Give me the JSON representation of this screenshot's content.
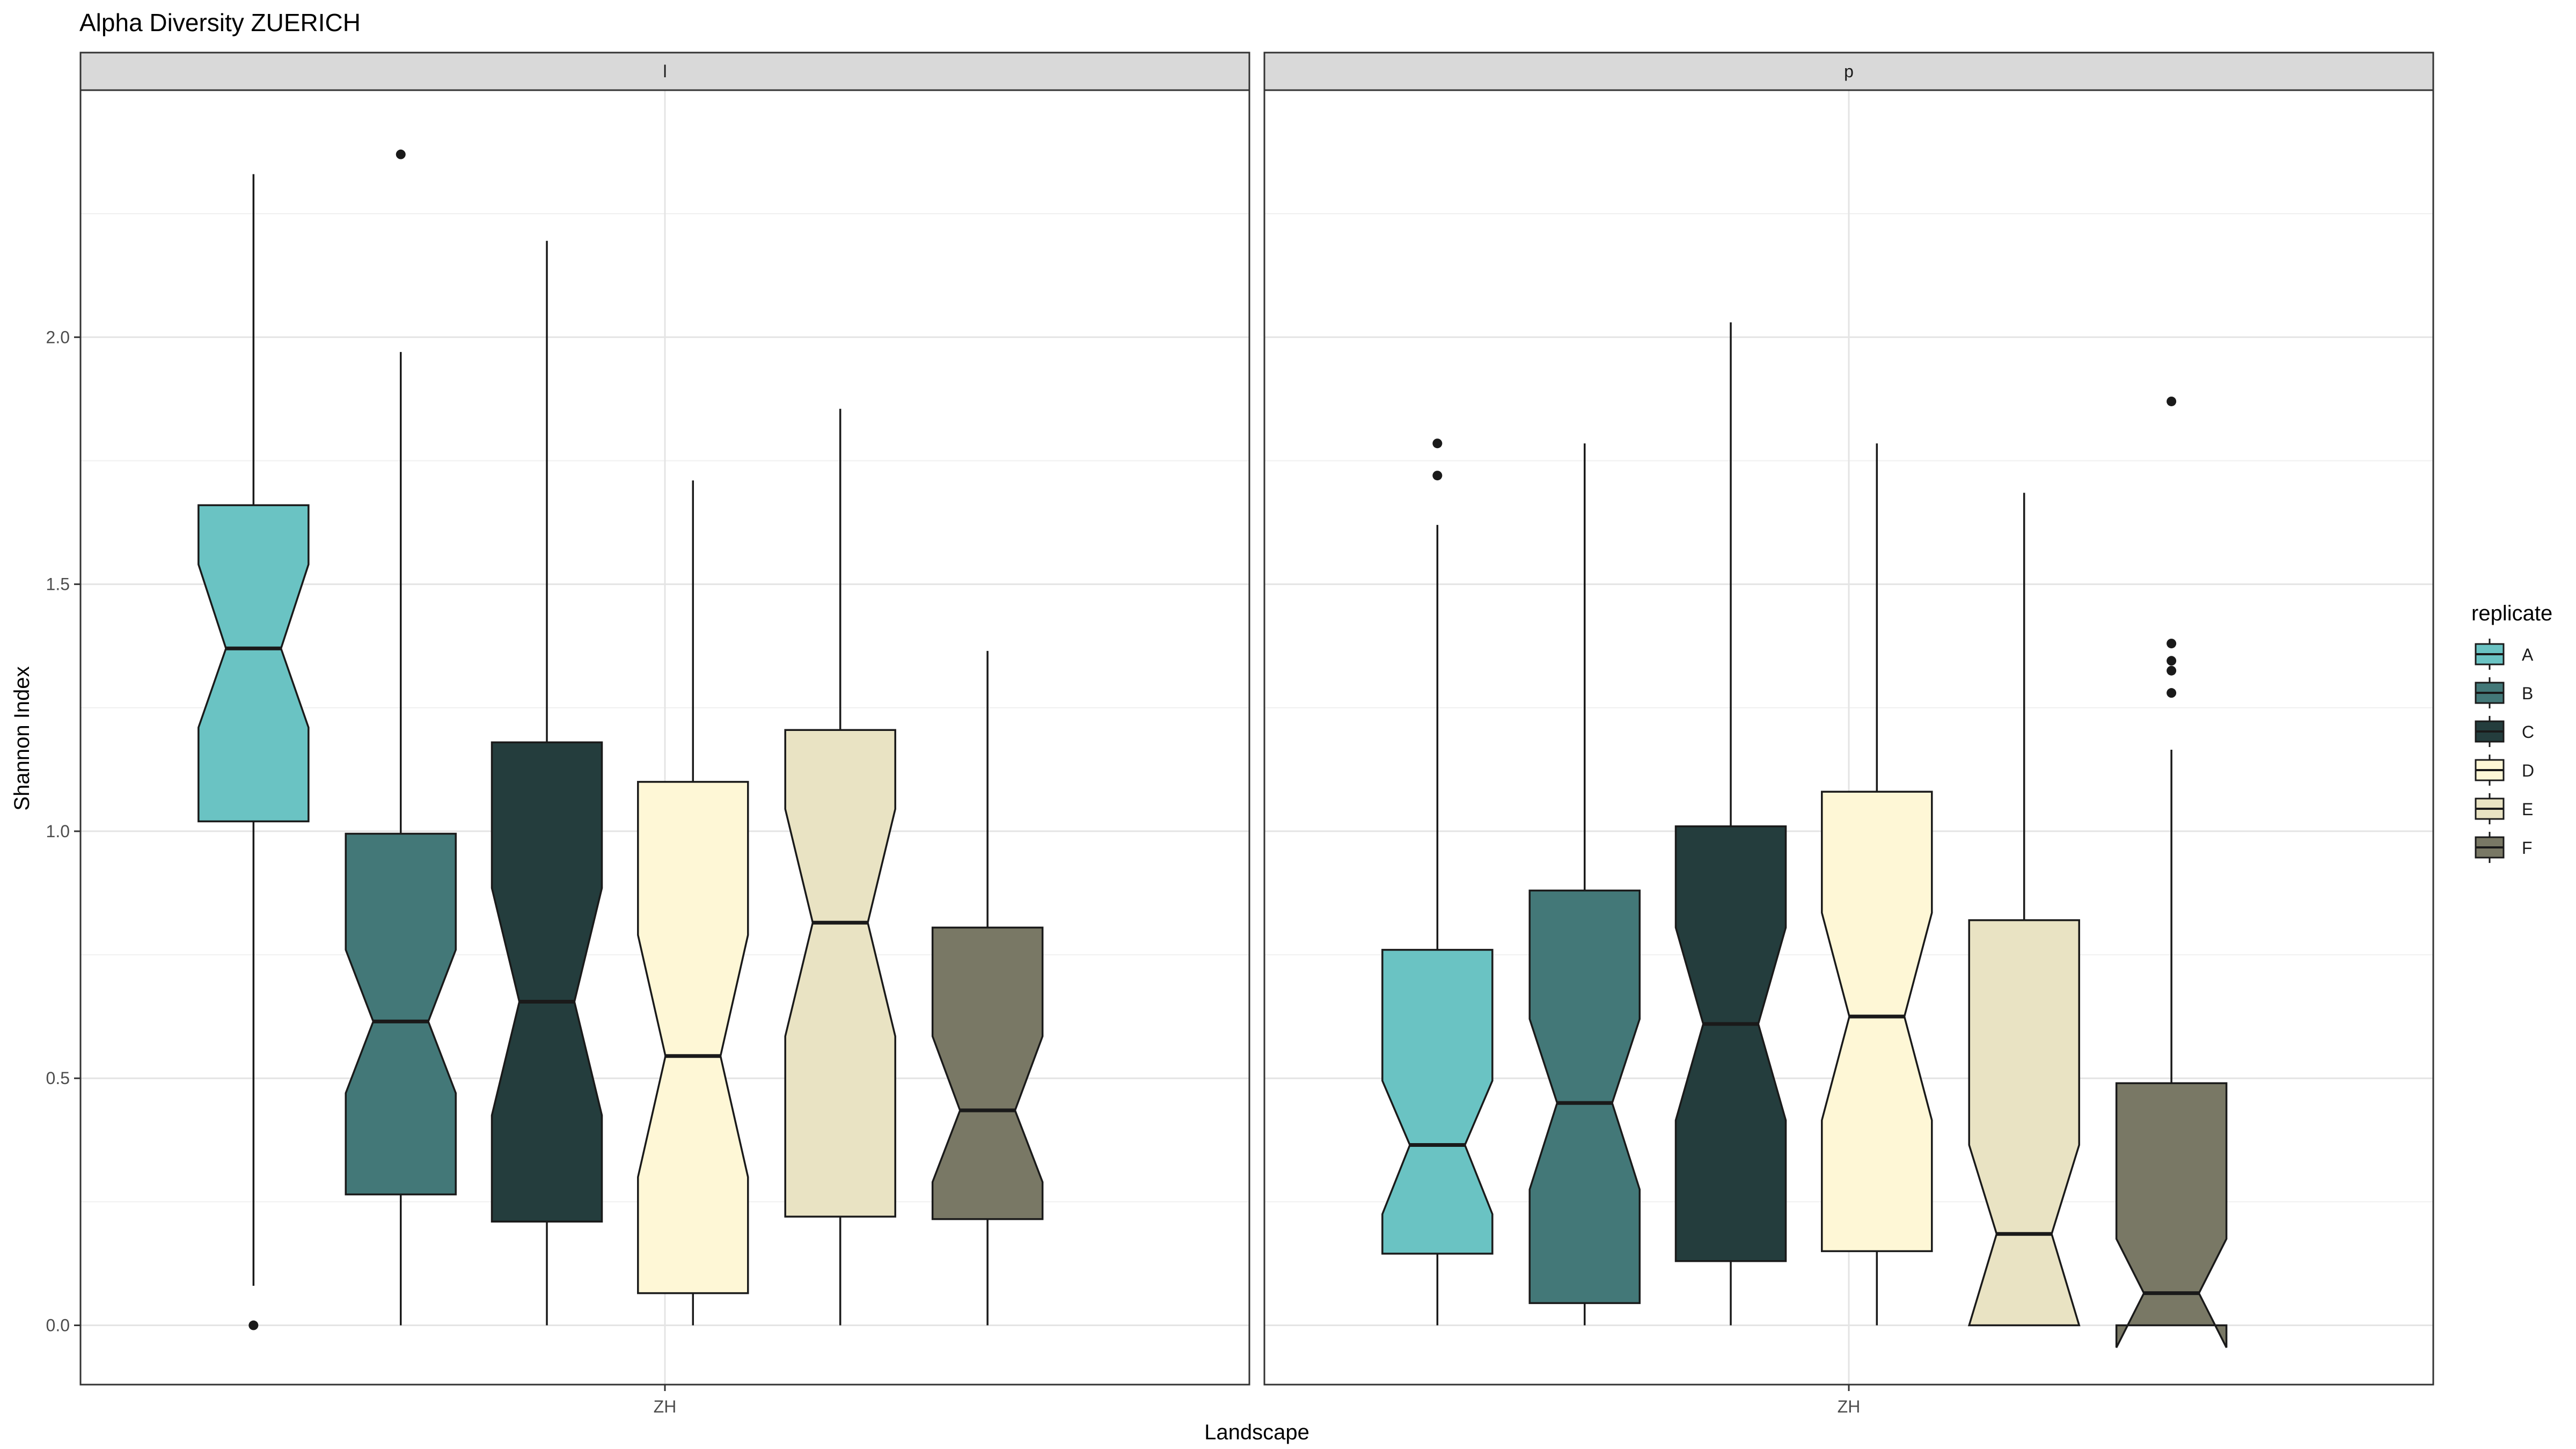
{
  "chart_data": {
    "type": "boxplot",
    "title": "Alpha Diversity ZUERICH",
    "xlabel": "Landscape",
    "ylabel": "Shannon Index",
    "ylim": [
      -0.12,
      2.5
    ],
    "yticks": [
      0.0,
      0.5,
      1.0,
      1.5,
      2.0
    ],
    "ytick_labels": [
      "0.0",
      "0.5",
      "1.0",
      "1.5",
      "2.0"
    ],
    "x_category": "ZH",
    "grid": true,
    "notched": true,
    "legend": {
      "title": "replicate",
      "position": "right",
      "entries": [
        "A",
        "B",
        "C",
        "D",
        "E",
        "F"
      ]
    },
    "colors": {
      "A": "#6AC3C3",
      "B": "#437878",
      "C": "#243D3D",
      "D": "#FEF7D6",
      "E": "#E9E3C3",
      "F": "#797865"
    },
    "panels": [
      {
        "label": "l",
        "boxes": [
          {
            "replicate": "A",
            "whisker_low": 0.08,
            "q1": 1.02,
            "median": 1.37,
            "q3": 1.66,
            "whisker_high": 2.33,
            "notch_low": 1.21,
            "notch_high": 1.54,
            "outliers": [
              0.0
            ]
          },
          {
            "replicate": "B",
            "whisker_low": 0.0,
            "q1": 0.265,
            "median": 0.615,
            "q3": 0.995,
            "whisker_high": 1.97,
            "notch_low": 0.47,
            "notch_high": 0.76,
            "outliers": [
              2.37
            ]
          },
          {
            "replicate": "C",
            "whisker_low": 0.0,
            "q1": 0.21,
            "median": 0.655,
            "q3": 1.18,
            "whisker_high": 2.195,
            "notch_low": 0.425,
            "notch_high": 0.885,
            "outliers": []
          },
          {
            "replicate": "D",
            "whisker_low": 0.0,
            "q1": 0.065,
            "median": 0.545,
            "q3": 1.1,
            "whisker_high": 1.71,
            "notch_low": 0.3,
            "notch_high": 0.79,
            "outliers": []
          },
          {
            "replicate": "E",
            "whisker_low": 0.0,
            "q1": 0.22,
            "median": 0.815,
            "q3": 1.205,
            "whisker_high": 1.855,
            "notch_low": 0.585,
            "notch_high": 1.045,
            "outliers": []
          },
          {
            "replicate": "F",
            "whisker_low": 0.0,
            "q1": 0.215,
            "median": 0.435,
            "q3": 0.805,
            "whisker_high": 1.365,
            "notch_low": 0.29,
            "notch_high": 0.585,
            "outliers": []
          }
        ]
      },
      {
        "label": "p",
        "boxes": [
          {
            "replicate": "A",
            "whisker_low": 0.0,
            "q1": 0.145,
            "median": 0.365,
            "q3": 0.76,
            "whisker_high": 1.62,
            "notch_low": 0.225,
            "notch_high": 0.495,
            "outliers": [
              1.72,
              1.785
            ]
          },
          {
            "replicate": "B",
            "whisker_low": 0.0,
            "q1": 0.045,
            "median": 0.45,
            "q3": 0.88,
            "whisker_high": 1.785,
            "notch_low": 0.275,
            "notch_high": 0.62,
            "outliers": []
          },
          {
            "replicate": "C",
            "whisker_low": 0.0,
            "q1": 0.13,
            "median": 0.61,
            "q3": 1.01,
            "whisker_high": 2.03,
            "notch_low": 0.415,
            "notch_high": 0.805,
            "outliers": []
          },
          {
            "replicate": "D",
            "whisker_low": 0.0,
            "q1": 0.15,
            "median": 0.625,
            "q3": 1.08,
            "whisker_high": 1.785,
            "notch_low": 0.415,
            "notch_high": 0.835,
            "outliers": []
          },
          {
            "replicate": "E",
            "whisker_low": 0.0,
            "q1": 0.0,
            "median": 0.185,
            "q3": 0.82,
            "whisker_high": 1.685,
            "notch_low": 0.0,
            "notch_high": 0.365,
            "outliers": []
          },
          {
            "replicate": "F",
            "whisker_low": 0.0,
            "q1": 0.0,
            "median": 0.065,
            "q3": 0.49,
            "whisker_high": 1.165,
            "notch_low": -0.045,
            "notch_high": 0.175,
            "outliers": [
              1.28,
              1.325,
              1.345,
              1.38,
              1.87
            ]
          }
        ]
      }
    ]
  }
}
